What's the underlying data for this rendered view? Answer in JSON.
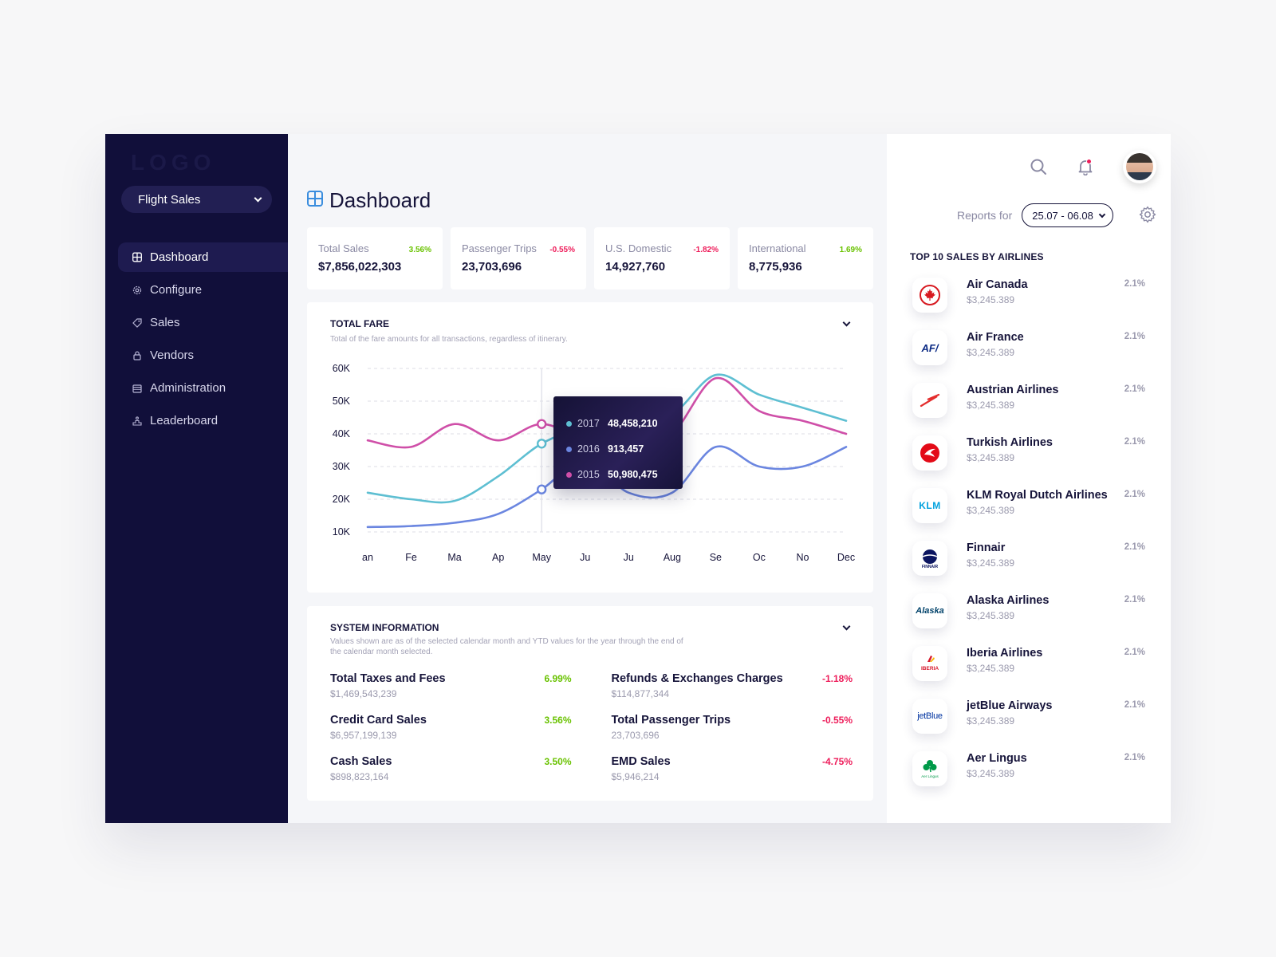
{
  "sidebar": {
    "logo": "LOGO",
    "selector": "Flight Sales",
    "items": [
      {
        "label": "Dashboard",
        "icon": "grid-icon",
        "active": true
      },
      {
        "label": "Configure",
        "icon": "gear-icon"
      },
      {
        "label": "Sales",
        "icon": "tag-icon"
      },
      {
        "label": "Vendors",
        "icon": "lock-icon"
      },
      {
        "label": "Administration",
        "icon": "calendar-icon"
      },
      {
        "label": "Leaderboard",
        "icon": "podium-icon"
      }
    ]
  },
  "header": {
    "title": "Dashboard",
    "reports_label": "Reports for",
    "date_range": "25.07 - 06.08"
  },
  "stats": [
    {
      "label": "Total Sales",
      "value": "$7,856,022,303",
      "change": "3.56%",
      "trend": "up"
    },
    {
      "label": "Passenger Trips",
      "value": "23,703,696",
      "change": "-0.55%",
      "trend": "down"
    },
    {
      "label": "U.S. Domestic",
      "value": "14,927,760",
      "change": "-1.82%",
      "trend": "down"
    },
    {
      "label": "International",
      "value": "8,775,936",
      "change": "1.69%",
      "trend": "up"
    }
  ],
  "colors": {
    "up": "#69c200",
    "down": "#ee1c5a",
    "s2017": "#5ebfd2",
    "s2016": "#6b86e0",
    "s2015": "#cf4fa8",
    "accent": "#3a8dde"
  },
  "fare": {
    "title": "TOTAL FARE",
    "subtitle": "Total of the fare amounts for all transactions, regardless of itinerary.",
    "tooltip": [
      {
        "year": "2017",
        "value": "48,458,210"
      },
      {
        "year": "2016",
        "value": "913,457"
      },
      {
        "year": "2015",
        "value": "50,980,475"
      }
    ]
  },
  "chart_data": {
    "type": "line",
    "categories": [
      "an",
      "Fe",
      "Ma",
      "Ap",
      "May",
      "Ju",
      "Ju",
      "Aug",
      "Se",
      "Oc",
      "No",
      "Dec"
    ],
    "yticks": [
      "60K",
      "50K",
      "40K",
      "30K",
      "20K",
      "10K"
    ],
    "ylim": [
      10000,
      60000
    ],
    "grid": true,
    "series": [
      {
        "name": "2017",
        "values": [
          22000,
          20000,
          19500,
          27000,
          37000,
          42000,
          44000,
          46000,
          58000,
          52000,
          48000,
          44000
        ]
      },
      {
        "name": "2016",
        "values": [
          11500,
          11800,
          12800,
          15500,
          23000,
          32000,
          22000,
          22000,
          36000,
          30000,
          30000,
          36000
        ]
      },
      {
        "name": "2015",
        "values": [
          38000,
          36000,
          43000,
          38000,
          43000,
          38000,
          35000,
          40000,
          57000,
          47000,
          44000,
          40000
        ]
      }
    ]
  },
  "system": {
    "title": "SYSTEM INFORMATION",
    "subtitle_1": "Values shown are as of the selected calendar month and YTD values for the year through the end of",
    "subtitle_2": "the calendar month selected.",
    "items": [
      {
        "name": "Total Taxes and Fees",
        "value": "$1,469,543,239",
        "change": "6.99%",
        "trend": "up"
      },
      {
        "name": "Refunds & Exchanges Charges",
        "value": "$114,877,344",
        "change": "-1.18%",
        "trend": "down"
      },
      {
        "name": "Credit Card Sales",
        "value": "$6,957,199,139",
        "change": "3.56%",
        "trend": "up"
      },
      {
        "name": "Total Passenger Trips",
        "value": "23,703,696",
        "change": "-0.55%",
        "trend": "down"
      },
      {
        "name": "Cash Sales",
        "value": "$898,823,164",
        "change": "3.50%",
        "trend": "up"
      },
      {
        "name": "EMD Sales",
        "value": "$5,946,214",
        "change": "-4.75%",
        "trend": "down"
      }
    ]
  },
  "airlines": {
    "title": "TOP 10 SALES BY AIRLINES",
    "items": [
      {
        "name": "Air Canada",
        "value": "$3,245.389",
        "pct": "2.1%",
        "icon": "maple-leaf-icon"
      },
      {
        "name": "Air France",
        "value": "$3,245.389",
        "pct": "2.1%",
        "icon": "air-france-logo-icon",
        "logo_text": "AF/"
      },
      {
        "name": "Austrian Airlines",
        "value": "$3,245.389",
        "pct": "2.1%",
        "icon": "arrow-icon"
      },
      {
        "name": "Turkish Airlines",
        "value": "$3,245.389",
        "pct": "2.1%",
        "icon": "bird-icon"
      },
      {
        "name": "KLM Royal Dutch Airlines",
        "value": "$3,245.389",
        "pct": "2.1%",
        "icon": "klm-logo-icon",
        "logo_text": "KLM"
      },
      {
        "name": "Finnair",
        "value": "$3,245.389",
        "pct": "2.1%",
        "icon": "globe-icon",
        "logo_text": "FINNAIR"
      },
      {
        "name": "Alaska Airlines",
        "value": "$3,245.389",
        "pct": "2.1%",
        "icon": "alaska-logo-icon",
        "logo_text": "Alaska"
      },
      {
        "name": "Iberia Airlines",
        "value": "$3,245.389",
        "pct": "2.1%",
        "icon": "iberia-logo-icon",
        "logo_text": "IBERIA"
      },
      {
        "name": "jetBlue Airways",
        "value": "$3,245.389",
        "pct": "2.1%",
        "icon": "jetblue-logo-icon",
        "logo_text": "jetBlue"
      },
      {
        "name": "Aer Lingus",
        "value": "$3,245.389",
        "pct": "2.1%",
        "icon": "shamrock-icon",
        "logo_text": "Aer Lingus"
      }
    ]
  }
}
